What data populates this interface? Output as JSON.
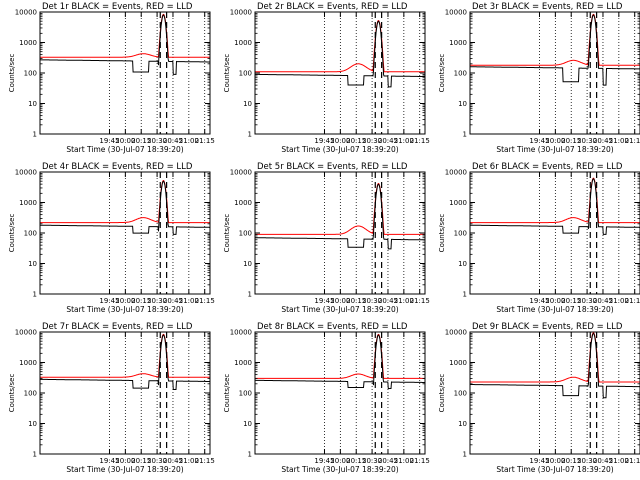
{
  "figure": {
    "ylabel": "Counts/sec",
    "xlabel": "Start Time (30-Jul-07 18:39:20)",
    "series_colors": {
      "events": "#000000",
      "lld": "#ff0000"
    },
    "marker_times": [
      "20:33",
      "20:39"
    ]
  },
  "chart_data": [
    {
      "title": "Det 1r BLACK = Events, RED = LLD",
      "type": "line",
      "xlabel": "Start Time (30-Jul-07 18:39:20)",
      "ylabel": "Counts/sec",
      "x_ticks": [
        "19:45",
        "20:00",
        "20:15",
        "20:30",
        "20:45",
        "21:00",
        "21:15"
      ],
      "y_ticks": [
        "1",
        "10",
        "100",
        "1000",
        "10000"
      ],
      "yscale": "log",
      "ylim": [
        1,
        10000
      ],
      "events_level": 270,
      "dip_level": 90,
      "peak": 8000,
      "lld_level": 330,
      "lld_bump": 430
    },
    {
      "title": "Det 2r BLACK = Events, RED = LLD",
      "type": "line",
      "xlabel": "Start Time (30-Jul-07 18:39:20)",
      "ylabel": "Counts/sec",
      "x_ticks": [
        "19:45",
        "20:00",
        "20:15",
        "20:30",
        "20:45",
        "21:00",
        "21:15"
      ],
      "y_ticks": [
        "1",
        "10",
        "100",
        "1000",
        "10000"
      ],
      "yscale": "log",
      "ylim": [
        1,
        10000
      ],
      "events_level": 90,
      "dip_level": 35,
      "peak": 5000,
      "lld_level": 110,
      "lld_bump": 200
    },
    {
      "title": "Det 3r BLACK = Events, RED = LLD",
      "type": "line",
      "xlabel": "Start Time (30-Jul-07 18:39:20)",
      "ylabel": "Counts/sec",
      "x_ticks": [
        "19:45",
        "20:00",
        "20:15",
        "20:30",
        "20:45",
        "21:00",
        "21:15"
      ],
      "y_ticks": [
        "1",
        "10",
        "100",
        "1000",
        "10000"
      ],
      "yscale": "log",
      "ylim": [
        1,
        10000
      ],
      "events_level": 160,
      "dip_level": 40,
      "peak": 8000,
      "lld_level": 180,
      "lld_bump": 260
    },
    {
      "title": "Det 4r BLACK = Events, RED = LLD",
      "type": "line",
      "xlabel": "Start Time (30-Jul-07 18:39:20)",
      "ylabel": "Counts/sec",
      "x_ticks": [
        "19:45",
        "20:00",
        "20:15",
        "20:30",
        "20:45",
        "21:00",
        "21:15"
      ],
      "y_ticks": [
        "1",
        "10",
        "100",
        "1000",
        "10000"
      ],
      "yscale": "log",
      "ylim": [
        1,
        10000
      ],
      "events_level": 180,
      "dip_level": 90,
      "peak": 5000,
      "lld_level": 220,
      "lld_bump": 320
    },
    {
      "title": "Det 5r BLACK = Events, RED = LLD",
      "type": "line",
      "xlabel": "Start Time (30-Jul-07 18:39:20)",
      "ylabel": "Counts/sec",
      "x_ticks": [
        "19:45",
        "20:00",
        "20:15",
        "20:30",
        "20:45",
        "21:00",
        "21:15"
      ],
      "y_ticks": [
        "1",
        "10",
        "100",
        "1000",
        "10000"
      ],
      "yscale": "log",
      "ylim": [
        1,
        10000
      ],
      "events_level": 70,
      "dip_level": 30,
      "peak": 4000,
      "lld_level": 90,
      "lld_bump": 170
    },
    {
      "title": "Det 6r BLACK = Events, RED = LLD",
      "type": "line",
      "xlabel": "Start Time (30-Jul-07 18:39:20)",
      "ylabel": "Counts/sec",
      "x_ticks": [
        "19:45",
        "20:00",
        "20:15",
        "20:30",
        "20:45",
        "21:00",
        "21:15"
      ],
      "y_ticks": [
        "1",
        "10",
        "100",
        "1000",
        "10000"
      ],
      "yscale": "log",
      "ylim": [
        1,
        10000
      ],
      "events_level": 180,
      "dip_level": 90,
      "peak": 6000,
      "lld_level": 220,
      "lld_bump": 320
    },
    {
      "title": "Det 7r BLACK = Events, RED = LLD",
      "type": "line",
      "xlabel": "Start Time (30-Jul-07 18:39:20)",
      "ylabel": "Counts/sec",
      "x_ticks": [
        "19:45",
        "20:00",
        "20:15",
        "20:30",
        "20:45",
        "21:00",
        "21:15"
      ],
      "y_ticks": [
        "1",
        "10",
        "100",
        "1000",
        "10000"
      ],
      "yscale": "log",
      "ylim": [
        1,
        10000
      ],
      "events_level": 280,
      "dip_level": 130,
      "peak": 8000,
      "lld_level": 330,
      "lld_bump": 430
    },
    {
      "title": "Det 8r BLACK = Events, RED = LLD",
      "type": "line",
      "xlabel": "Start Time (30-Jul-07 18:39:20)",
      "ylabel": "Counts/sec",
      "x_ticks": [
        "19:45",
        "20:00",
        "20:15",
        "20:30",
        "20:45",
        "21:00",
        "21:15"
      ],
      "y_ticks": [
        "1",
        "10",
        "100",
        "1000",
        "10000"
      ],
      "yscale": "log",
      "ylim": [
        1,
        10000
      ],
      "events_level": 260,
      "dip_level": 140,
      "peak": 8000,
      "lld_level": 300,
      "lld_bump": 420
    },
    {
      "title": "Det 9r BLACK = Events, RED = LLD",
      "type": "line",
      "xlabel": "Start Time (30-Jul-07 18:39:20)",
      "ylabel": "Counts/sec",
      "x_ticks": [
        "19:45",
        "20:00",
        "20:15",
        "20:30",
        "20:45",
        "21:00",
        "21:15"
      ],
      "y_ticks": [
        "1",
        "10",
        "100",
        "1000",
        "10000"
      ],
      "yscale": "log",
      "ylim": [
        1,
        10000
      ],
      "events_level": 190,
      "dip_level": 70,
      "peak": 9000,
      "lld_level": 230,
      "lld_bump": 330
    }
  ]
}
